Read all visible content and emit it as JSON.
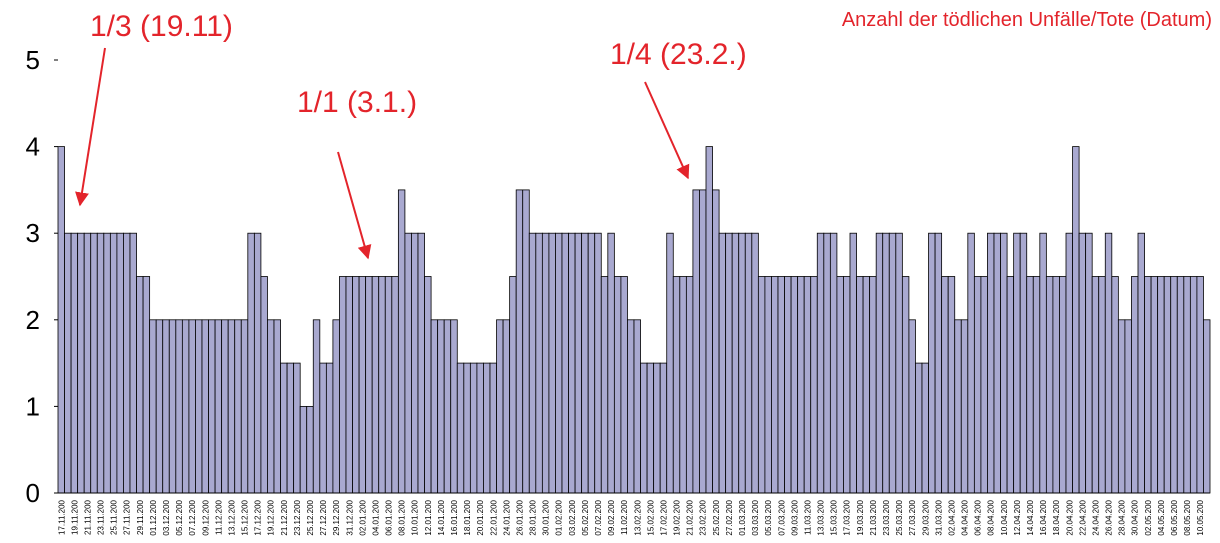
{
  "chart_data": {
    "type": "bar",
    "title": "Anzahl der tödlichen Unfälle/Tote (Datum)",
    "annotations": [
      "1/3 (19.11)",
      "1/1 (3.1.)",
      "1/4 (23.2.)"
    ],
    "color": "#a9a9d0",
    "ylim": [
      0,
      5
    ],
    "yticks": [
      0,
      1,
      2,
      3,
      4,
      5
    ],
    "grid": false,
    "categories": [
      "17.11.200",
      null,
      "19.11.200",
      null,
      "21.11.200",
      null,
      "23.11.200",
      null,
      "25.11.200",
      null,
      "27.11.200",
      null,
      "29.11.200",
      null,
      "01.12.200",
      null,
      "03.12.200",
      null,
      "05.12.200",
      null,
      "07.12.200",
      null,
      "09.12.200",
      null,
      "11.12.200",
      null,
      "13.12.200",
      null,
      "15.12.200",
      null,
      "17.12.200",
      null,
      "19.12.200",
      null,
      "21.12.200",
      null,
      "23.12.200",
      null,
      "25.12.200",
      null,
      "27.12.200",
      null,
      "29.12.200",
      null,
      "31.12.200",
      null,
      "02.01.200",
      null,
      "04.01.200",
      null,
      "06.01.200",
      null,
      "08.01.200",
      null,
      "10.01.200",
      null,
      "12.01.200",
      null,
      "14.01.200",
      null,
      "16.01.200",
      null,
      "18.01.200",
      null,
      "20.01.200",
      null,
      "22.01.200",
      null,
      "24.01.200",
      null,
      "26.01.200",
      null,
      "28.01.200",
      null,
      "30.01.200",
      null,
      "01.02.200",
      null,
      "03.02.200",
      null,
      "05.02.200",
      null,
      "07.02.200",
      null,
      "09.02.200",
      null,
      "11.02.200",
      null,
      "13.02.200",
      null,
      "15.02.200",
      null,
      "17.02.200",
      null,
      "19.02.200",
      null,
      "21.02.200",
      null,
      "23.02.200",
      null,
      "25.02.200",
      null,
      "27.02.200",
      null,
      "01.03.200",
      null,
      "03.03.200",
      null,
      "05.03.200",
      null,
      "07.03.200",
      null,
      "09.03.200",
      null,
      "11.03.200",
      null,
      "13.03.200",
      null,
      "15.03.200",
      null,
      "17.03.200",
      null,
      "19.03.200",
      null,
      "21.03.200",
      null,
      "23.03.200",
      null,
      "25.03.200",
      null,
      "27.03.200",
      null,
      "29.03.200",
      null,
      "31.03.200",
      null,
      "02.04.200",
      null,
      "04.04.200",
      null,
      "06.04.200",
      null,
      "08.04.200",
      null,
      "10.04.200",
      null,
      "12.04.200",
      null,
      "14.04.200",
      null,
      "16.04.200",
      null,
      "18.04.200",
      null,
      "20.04.200",
      null,
      "22.04.200",
      null,
      "24.04.200",
      null,
      "26.04.200",
      null,
      "28.04.200",
      null,
      "30.04.200",
      null,
      "02.05.200",
      null,
      "04.05.200",
      null,
      "06.05.200",
      null,
      "08.05.200",
      null,
      "10.05.200",
      null
    ],
    "values": [
      4,
      3,
      3,
      3,
      3,
      3,
      3,
      3,
      3,
      3,
      3,
      3,
      2.5,
      2.5,
      2,
      2,
      2,
      2,
      2,
      2,
      2,
      2,
      2,
      2,
      2,
      2,
      2,
      2,
      2,
      3,
      3,
      2.5,
      2,
      2,
      1.5,
      1.5,
      1.5,
      1,
      1,
      2,
      1.5,
      1.5,
      2,
      2.5,
      2.5,
      2.5,
      2.5,
      2.5,
      2.5,
      2.5,
      2.5,
      2.5,
      3.5,
      3,
      3,
      3,
      2.5,
      2,
      2,
      2,
      2,
      1.5,
      1.5,
      1.5,
      1.5,
      1.5,
      1.5,
      2,
      2,
      2.5,
      3.5,
      3.5,
      3,
      3,
      3,
      3,
      3,
      3,
      3,
      3,
      3,
      3,
      3,
      2.5,
      3,
      2.5,
      2.5,
      2,
      2,
      1.5,
      1.5,
      1.5,
      1.5,
      3,
      2.5,
      2.5,
      2.5,
      3.5,
      3.5,
      4,
      3.5,
      3,
      3,
      3,
      3,
      3,
      3,
      2.5,
      2.5,
      2.5,
      2.5,
      2.5,
      2.5,
      2.5,
      2.5,
      2.5,
      3,
      3,
      3,
      2.5,
      2.5,
      3,
      2.5,
      2.5,
      2.5,
      3,
      3,
      3,
      3,
      2.5,
      2,
      1.5,
      1.5,
      3,
      3,
      2.5,
      2.5,
      2,
      2,
      3,
      2.5,
      2.5,
      3,
      3,
      3,
      2.5,
      3,
      3,
      2.5,
      2.5,
      3,
      2.5,
      2.5,
      2.5,
      3,
      4,
      3,
      3,
      2.5,
      2.5,
      3,
      2.5,
      2,
      2,
      2.5,
      3,
      2.5,
      2.5,
      2.5,
      2.5,
      2.5,
      2.5,
      2.5,
      2.5,
      2.5,
      2
    ]
  }
}
